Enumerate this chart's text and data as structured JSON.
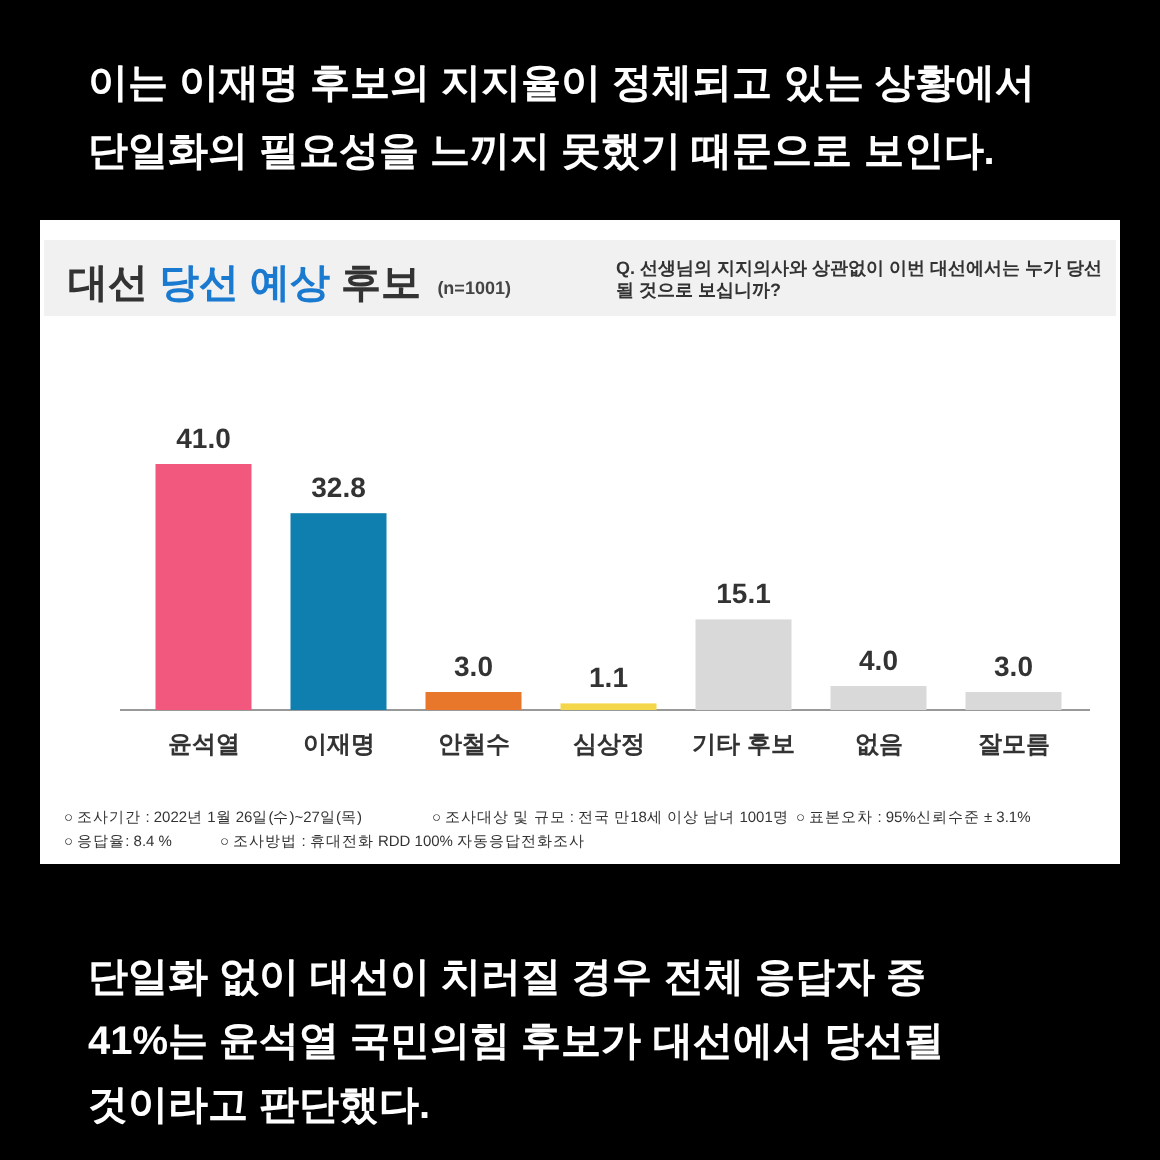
{
  "chart_data": {
    "type": "bar",
    "title": "대선 당선 예상 후보",
    "subtitle": "(n=1001)",
    "categories": [
      "윤석열",
      "이재명",
      "안철수",
      "심상정",
      "기타 후보",
      "없음",
      "잘모름"
    ],
    "values": [
      41.0,
      32.8,
      3.0,
      1.1,
      15.1,
      4.0,
      3.0
    ],
    "value_labels": [
      "41.0",
      "32.8",
      "3.0",
      "1.1",
      "15.1",
      "4.0",
      "3.0"
    ],
    "colors": [
      "#f2587e",
      "#0e7faf",
      "#e8772b",
      "#f4d64a",
      "#d9d9d9",
      "#d9d9d9",
      "#d9d9d9"
    ],
    "data_labels": true,
    "annotations": [
      "이는 이재명 후보의 지지율이 정체되고 있는 상황에서\n단일화의 필요성을 느끼지 못했기 때문으로 보인다.",
      "Q. 선생님의 지지의사와 상관없이 이번 대선에서는 누가 당선\n될 것으로 보십니까?",
      "○ 조사기간 : 2022년 1월 26일(수)~27일(목)",
      "○ 조사대상 및 규모 : 전국 만18세 이상 남녀 1001명",
      "○ 표본오차 : 95%신뢰수준 ± 3.1%",
      "○ 응답율: 8.4 %",
      "○ 조사방법 : 휴대전화 RDD 100% 자동응답전화조사",
      "단일화 없이 대선이 치러질 경우 전체 응답자 중\n41%는 윤석열 국민의힘 후보가 대선에서 당선될\n것이라고 판단했다."
    ]
  }
}
